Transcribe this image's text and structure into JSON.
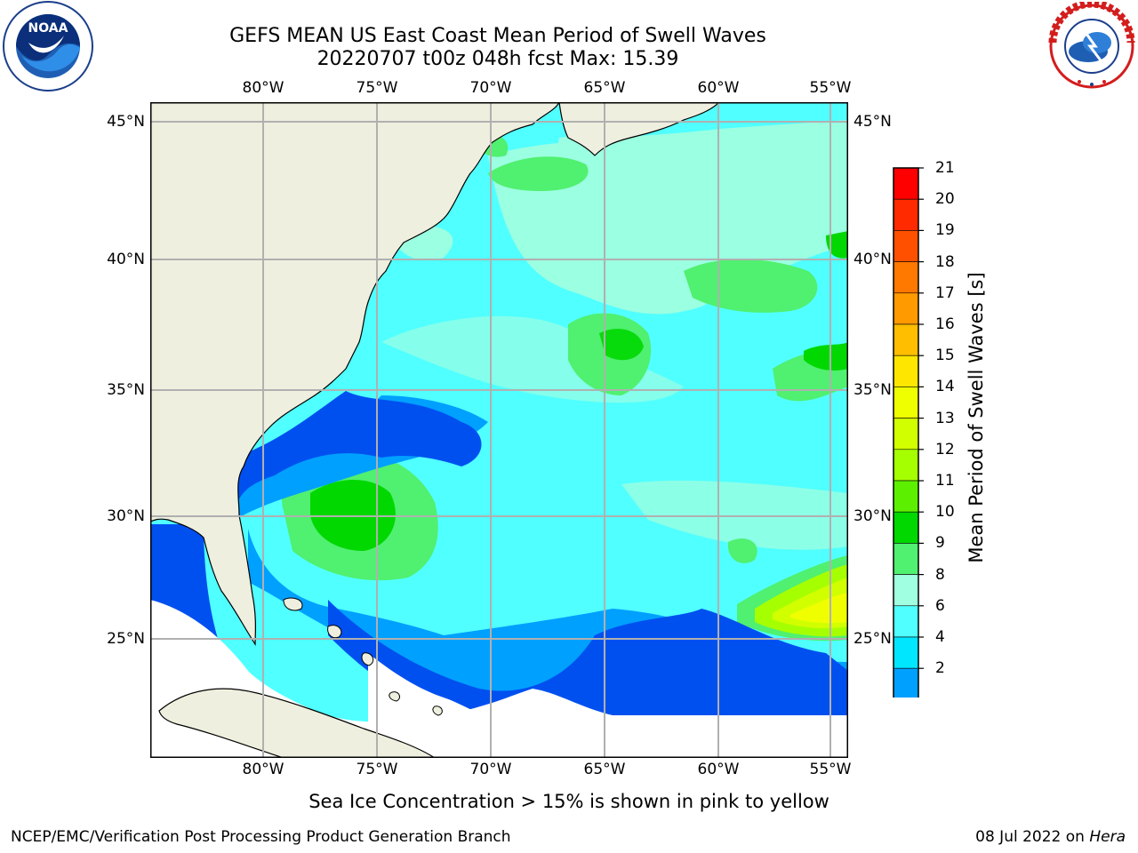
{
  "title_line1": "GEFS MEAN US East Coast Mean Period of Swell Waves",
  "title_line2": "20220707 t00z 048h fcst   Max: 15.39",
  "top_lon_labels": [
    "80°W",
    "75°W",
    "70°W",
    "65°W",
    "60°W",
    "55°W"
  ],
  "bottom_lon_labels": [
    "80°W",
    "75°W",
    "70°W",
    "65°W",
    "60°W",
    "55°W"
  ],
  "left_lat_labels": [
    "45°N",
    "40°N",
    "35°N",
    "30°N",
    "25°N"
  ],
  "right_lat_labels": [
    "45°N",
    "40°N",
    "35°N",
    "30°N",
    "25°N"
  ],
  "colorbar": {
    "title": "Mean Period of Swell Waves [s]",
    "ticks": [
      "21",
      "20",
      "19",
      "18",
      "17",
      "16",
      "15",
      "14",
      "13",
      "12",
      "11",
      "10",
      "9",
      "8",
      "6",
      "4",
      "2"
    ],
    "colors": [
      "#ff0000",
      "#ff2a00",
      "#ff5000",
      "#ff7800",
      "#ff9a00",
      "#ffbe00",
      "#ffe600",
      "#f0ff00",
      "#d2ff00",
      "#a6ff00",
      "#5cf000",
      "#00d800",
      "#50f070",
      "#a0ffe0",
      "#50ffff",
      "#00e6ff",
      "#00a0ff",
      "#0050f0"
    ]
  },
  "footnote": "Sea Ice Concentration > 15% is shown in pink to yellow",
  "footer_left": "NCEP/EMC/Verification Post Processing Product Generation Branch",
  "footer_right_date": "08 Jul 2022 on",
  "footer_right_host": "Hera",
  "logos": {
    "left_icon": "noaa-logo",
    "right_icon": "national-weather-service-logo"
  }
}
